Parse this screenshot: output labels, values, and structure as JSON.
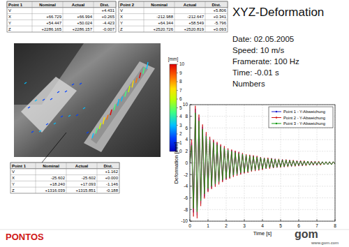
{
  "header": {
    "title": "XYZ-Deformation",
    "info": [
      "Date: 02.05.2005",
      "Speed: 10 m/s",
      "Framerate: 100 Hz",
      "Time: -0.01 s",
      "Numbers"
    ]
  },
  "tables": [
    {
      "columns": [
        "Point 1",
        "Nominal",
        "Actual",
        "Dist."
      ],
      "rows": [
        [
          "V",
          null,
          null,
          "+4.431"
        ],
        [
          "X",
          "+66.729",
          "+66.994",
          "+0.265"
        ],
        [
          "Y",
          "+54.447",
          "+50.024",
          "-4.423"
        ],
        [
          "Z",
          "+2286.165",
          "+2286.157",
          "-0.007"
        ]
      ]
    },
    {
      "columns": [
        "Point 2",
        "Nominal",
        "Actual",
        "Dist."
      ],
      "rows": [
        [
          "V",
          null,
          null,
          "+5.806"
        ],
        [
          "X",
          "-212.988",
          "-212.647",
          "+0.341"
        ],
        [
          "Y",
          "+64.344",
          "+58.549",
          "-5.796"
        ],
        [
          "Z",
          "+2520.726",
          "+2520.819",
          "+0.093"
        ]
      ]
    },
    {
      "columns": [
        "Point 1",
        "Nominal",
        "Actual",
        "Dist."
      ],
      "rows": [
        [
          "V",
          null,
          null,
          "+1.162"
        ],
        [
          "X",
          "-25.602",
          "-25.602",
          "+0.000"
        ],
        [
          "Y",
          "+18.240",
          "+17.093",
          "-1.146"
        ],
        [
          "Z",
          "+1316.039",
          "+1315.851",
          "-0.188"
        ]
      ]
    }
  ],
  "colorbar": {
    "unit": "[mm]",
    "range": [
      0,
      10
    ],
    "ticks": [
      0,
      1,
      2,
      3,
      4,
      5,
      6,
      7,
      8,
      9,
      10
    ]
  },
  "chart_data": {
    "type": "line",
    "xlabel": "Time [s]",
    "ylabel": "Deformation [mm]",
    "x": [
      0,
      0.1,
      0.2,
      0.3,
      0.4,
      0.5,
      0.6,
      0.7,
      0.8,
      0.9,
      1.0,
      1.1,
      1.2,
      1.3,
      1.4,
      1.5,
      1.6,
      1.7,
      1.8,
      1.9,
      2.0,
      2.1,
      2.2,
      2.3,
      2.4,
      2.5,
      2.6,
      2.7,
      2.8,
      2.9,
      3.0,
      3.1,
      3.2,
      3.3,
      3.4,
      3.5,
      3.6,
      3.7,
      3.8,
      3.9,
      4.0,
      4.1,
      4.2,
      4.3,
      4.4,
      4.5,
      4.6,
      4.7,
      4.8,
      4.9,
      5.0,
      5.1,
      5.2,
      5.3,
      5.4,
      5.5,
      5.6,
      5.7,
      5.8,
      5.9,
      6.0,
      6.1,
      6.2,
      6.3,
      6.4,
      6.5,
      6.6,
      6.7,
      6.8,
      6.9,
      7.0,
      7.1,
      7.2,
      7.3,
      7.4,
      7.5,
      7.6,
      7.7,
      7.8,
      7.9,
      8.0
    ],
    "series": [
      {
        "name": "Point 1 - Y-Abweichung",
        "color": "#1a1acc",
        "values": [
          0,
          3.5,
          -8.5,
          9.3,
          -9.0,
          7.8,
          -7.0,
          6.2,
          -5.8,
          5.0,
          -4.8,
          4.2,
          -4.3,
          3.8,
          -3.9,
          3.4,
          -3.5,
          3.0,
          -3.1,
          2.7,
          -2.8,
          2.4,
          -2.6,
          2.2,
          -2.3,
          2.0,
          -2.1,
          1.8,
          -1.9,
          1.6,
          -1.7,
          1.4,
          -1.6,
          1.3,
          -1.4,
          1.2,
          -1.3,
          1.1,
          -1.2,
          1.0,
          -1.1,
          0.9,
          -1.0,
          0.8,
          -0.9,
          0.8,
          -0.9,
          0.7,
          -0.8,
          0.6,
          -0.7,
          0.6,
          -0.7,
          0.5,
          -0.6,
          0.5,
          -0.6,
          0.4,
          -0.5,
          0.4,
          -0.5,
          0.4,
          -0.5,
          0.3,
          -0.4,
          0.3,
          -0.4,
          0.3,
          -0.4,
          0.3,
          -0.4,
          0.2,
          -0.3,
          0.2,
          -0.3,
          0.2,
          -0.3,
          0.2,
          -0.3,
          0.2,
          -0.2
        ]
      },
      {
        "name": "Point 2 - Y-Abweichung",
        "color": "#d01010",
        "values": [
          0,
          4.0,
          -9.2,
          9.8,
          -9.5,
          8.3,
          -7.4,
          6.6,
          -6.1,
          5.3,
          -5.0,
          4.5,
          -4.5,
          4.0,
          -4.1,
          3.6,
          -3.7,
          3.2,
          -3.3,
          2.9,
          -2.9,
          2.5,
          -2.7,
          2.3,
          -2.4,
          2.1,
          -2.2,
          1.9,
          -2.0,
          1.7,
          -1.8,
          1.5,
          -1.7,
          1.4,
          -1.5,
          1.3,
          -1.4,
          1.2,
          -1.3,
          1.0,
          -1.2,
          0.9,
          -1.0,
          0.9,
          -1.0,
          0.8,
          -0.9,
          0.7,
          -0.8,
          0.7,
          -0.8,
          0.6,
          -0.7,
          0.6,
          -0.7,
          0.5,
          -0.6,
          0.5,
          -0.6,
          0.4,
          -0.5,
          0.4,
          -0.5,
          0.4,
          -0.5,
          0.3,
          -0.4,
          0.3,
          -0.4,
          0.3,
          -0.4,
          0.3,
          -0.4,
          0.2,
          -0.3,
          0.2,
          -0.3,
          0.2,
          -0.3,
          0.2,
          -0.2
        ]
      },
      {
        "name": "Point 3 - Y-Abweichung",
        "color": "#109a10",
        "values": [
          0,
          3.0,
          -7.8,
          8.6,
          -8.4,
          7.2,
          -6.5,
          5.8,
          -5.3,
          4.6,
          -4.4,
          3.9,
          -4.0,
          3.5,
          -3.6,
          3.1,
          -3.2,
          2.8,
          -2.9,
          2.5,
          -2.6,
          2.2,
          -2.4,
          2.0,
          -2.1,
          1.8,
          -1.9,
          1.6,
          -1.7,
          1.5,
          -1.6,
          1.3,
          -1.5,
          1.2,
          -1.3,
          1.1,
          -1.2,
          1.0,
          -1.1,
          0.9,
          -1.0,
          0.8,
          -0.9,
          0.7,
          -0.8,
          0.7,
          -0.8,
          0.6,
          -0.7,
          0.6,
          -0.7,
          0.5,
          -0.6,
          0.5,
          -0.6,
          0.4,
          -0.5,
          0.4,
          -0.5,
          0.3,
          -0.4,
          0.3,
          -0.4,
          0.3,
          -0.4,
          0.3,
          -0.4,
          0.2,
          -0.3,
          0.2,
          -0.3,
          0.2,
          -0.3,
          0.2,
          -0.3,
          0.2,
          -0.3,
          0.2,
          -0.3,
          0.2,
          -0.2
        ]
      }
    ],
    "xlim": [
      0,
      8
    ],
    "xticks": [
      0,
      1,
      2,
      3,
      4,
      5,
      6,
      7,
      8
    ],
    "ylim": [
      -10,
      10
    ],
    "yticks": [
      -10,
      -8,
      -6,
      -4,
      -2,
      0,
      2,
      4,
      6,
      8,
      10
    ],
    "grid": true,
    "legend": "upper right"
  },
  "footer": {
    "product": "PONTOS",
    "logo": "gom",
    "url": "www.gom.com"
  }
}
